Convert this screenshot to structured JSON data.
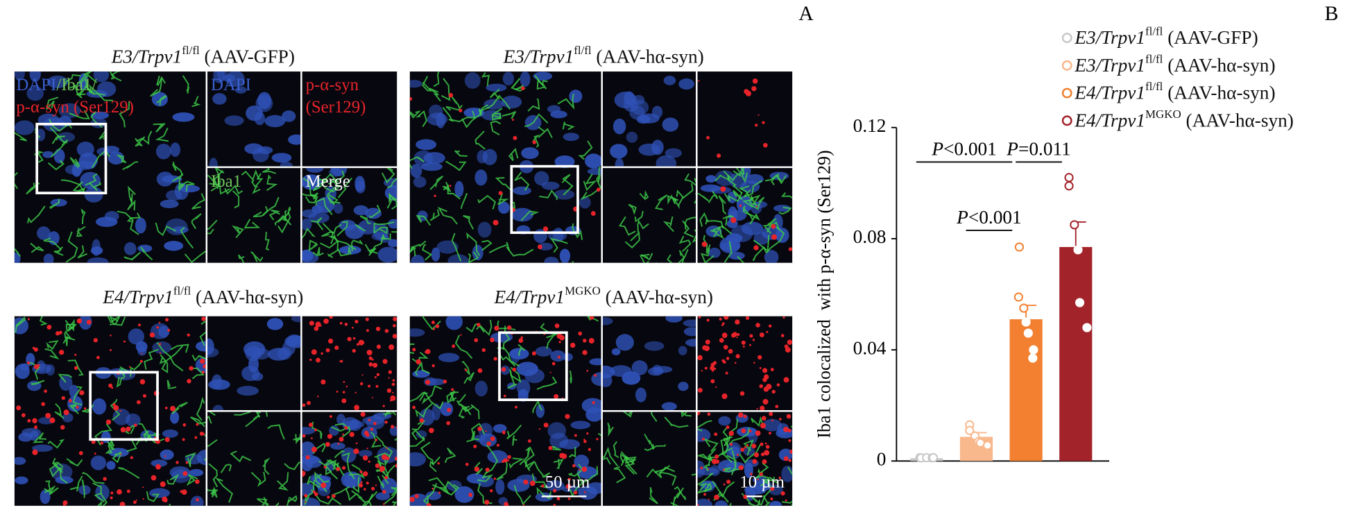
{
  "panel_labels": [
    "A",
    "B"
  ],
  "images": [
    {
      "title": [
        "E3/Trpv1",
        "fl/fl",
        " (AAV-GFP)"
      ]
    },
    {
      "title": [
        "E3/Trpv1",
        "fl/fl",
        " (AAV-hα-syn)"
      ]
    },
    {
      "title": [
        "E4/Trpv1",
        "fl/fl",
        " (AAV-hα-syn)"
      ]
    },
    {
      "title": [
        "E4/Trpv1",
        "MGKO",
        " (AAV-hα-syn)"
      ]
    }
  ],
  "image_labels": {
    "merged": [
      "DAPI",
      "/Iba1/",
      "p-α-syn (Ser129)"
    ],
    "dapi": "DAPI",
    "psyn": [
      "p-α-syn",
      "(Ser129)"
    ],
    "iba1": "Iba1",
    "merge": "Merge"
  },
  "scale_bars": [
    "50 µm",
    "10 µm"
  ],
  "chart_data": {
    "type": "bar",
    "ylabel": "Iba1 colocalized  with p-α-syn (Ser129)",
    "ylim": [
      0,
      0.12
    ],
    "yticks": [
      0,
      0.04,
      0.08,
      0.12
    ],
    "series": [
      {
        "name": [
          "E3/Trpv1",
          "fl/fl",
          " (AAV-GFP)"
        ],
        "color": "#c8c8c8",
        "value": 0.001,
        "error": 0.0004,
        "points": [
          0.0012,
          0.0011,
          0.0012,
          0.0011,
          0.0012
        ]
      },
      {
        "name": [
          "E3/Trpv1",
          "fl/fl",
          " (AAV-hα-syn)"
        ],
        "color": "#f8b88c",
        "value": 0.0087,
        "error": 0.0015,
        "points": [
          0.013,
          0.011,
          0.009,
          0.007,
          0.0065,
          0.0056
        ]
      },
      {
        "name": [
          "E4/Trpv1",
          "fl/fl",
          " (AAV-hα-syn)"
        ],
        "color": "#f28030",
        "value": 0.051,
        "error": 0.005,
        "points": [
          0.077,
          0.059,
          0.055,
          0.05,
          0.046,
          0.04,
          0.037
        ]
      },
      {
        "name": [
          "E4/Trpv1",
          "MGKO",
          " (AAV-hα-syn)"
        ],
        "color": "#a3232a",
        "value": 0.077,
        "error": 0.009,
        "points": [
          0.102,
          0.099,
          0.085,
          0.076,
          0.057,
          0.048
        ]
      }
    ],
    "annotations": [
      {
        "text": [
          "P",
          "<0.001"
        ],
        "from": 0,
        "to": 2,
        "y": 0.1076
      },
      {
        "text": [
          "P",
          "=0.011"
        ],
        "from": 2,
        "to": 3,
        "y": 0.1076
      },
      {
        "text": [
          "P",
          "<0.001"
        ],
        "from": 1,
        "to": 2,
        "y": 0.083
      }
    ]
  }
}
